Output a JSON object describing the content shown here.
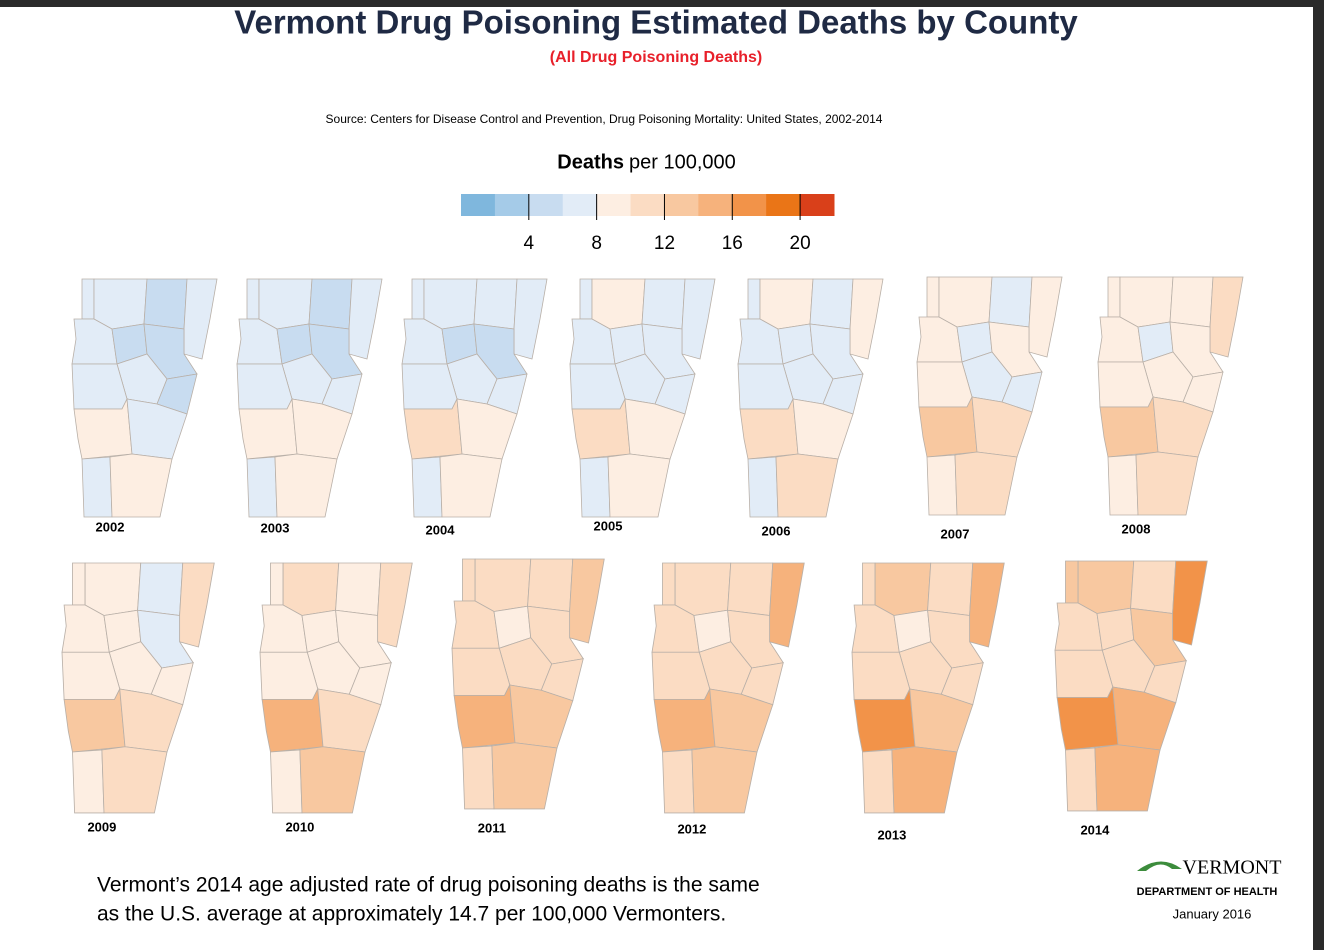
{
  "title": "Vermont Drug Poisoning Estimated Deaths by County",
  "subtitle": "(All Drug Poisoning Deaths)",
  "source": "Source: Centers for Disease Control and Prevention, Drug Poisoning Mortality: United States, 2002-2014",
  "legend": {
    "title_bold": "Deaths",
    "title_rest": "per 100,000",
    "colors": [
      "#7fb7dd",
      "#a5cbe8",
      "#c8dcf0",
      "#e2ecf7",
      "#fdeee2",
      "#fbdcc3",
      "#f8c8a0",
      "#f6b27c",
      "#f29349",
      "#ea7517",
      "#d9401a"
    ],
    "lim": [
      0,
      22
    ],
    "ticks": [
      4,
      8,
      12,
      16,
      20
    ]
  },
  "maps": [
    {
      "year": "2002",
      "values": [
        7,
        7,
        5,
        7,
        7,
        5,
        5,
        7,
        7,
        5,
        9,
        7,
        7,
        9
      ]
    },
    {
      "year": "2003",
      "values": [
        7,
        7,
        5,
        7,
        7,
        5,
        5,
        7,
        7,
        7,
        9,
        9,
        7,
        9
      ]
    },
    {
      "year": "2004",
      "values": [
        7,
        7,
        7,
        7,
        7,
        5,
        5,
        7,
        7,
        7,
        10.5,
        9,
        7,
        9
      ]
    },
    {
      "year": "2005",
      "values": [
        7,
        9,
        7,
        7,
        7,
        7,
        7,
        7,
        7,
        7,
        10.5,
        9,
        7,
        9
      ]
    },
    {
      "year": "2006",
      "values": [
        7,
        9,
        7,
        9,
        7,
        7,
        7,
        7,
        7,
        7,
        10.5,
        9,
        7,
        10.5
      ]
    },
    {
      "year": "2007",
      "values": [
        9,
        9,
        7,
        9,
        9,
        7,
        9,
        7,
        9,
        7,
        12.5,
        10.5,
        9,
        10.5
      ]
    },
    {
      "year": "2008",
      "values": [
        9,
        9,
        9,
        10.5,
        9,
        7,
        9,
        9,
        9,
        9,
        12.5,
        10.5,
        9,
        10.5
      ]
    },
    {
      "year": "2009",
      "values": [
        9,
        9,
        7,
        10.5,
        9,
        9,
        7,
        9,
        9,
        9,
        12.5,
        10.5,
        9,
        10.5
      ]
    },
    {
      "year": "2010",
      "values": [
        9,
        10.5,
        9,
        10.5,
        9,
        9,
        9,
        9,
        9,
        9,
        14.5,
        10.5,
        9,
        12.5
      ]
    },
    {
      "year": "2011",
      "values": [
        10.5,
        10.5,
        10.5,
        12.5,
        10.5,
        9,
        10.5,
        10.5,
        10.5,
        10.5,
        14.5,
        12.5,
        10.5,
        12.5
      ]
    },
    {
      "year": "2012",
      "values": [
        10.5,
        10.5,
        10.5,
        14.5,
        10.5,
        9,
        10.5,
        10.5,
        10.5,
        10.5,
        14.5,
        12.5,
        10.5,
        12.5
      ]
    },
    {
      "year": "2013",
      "values": [
        10.5,
        12.5,
        10.5,
        14.5,
        10.5,
        9,
        10.5,
        10.5,
        10.5,
        10.5,
        17,
        12.5,
        10.5,
        14.5
      ]
    },
    {
      "year": "2014",
      "values": [
        12.5,
        12.5,
        10.5,
        17,
        10.5,
        10.5,
        12.5,
        10.5,
        10.5,
        10.5,
        17,
        14.5,
        10.5,
        14.5
      ]
    }
  ],
  "note": [
    "Vermont’s 2014 age adjusted rate of drug poisoning deaths is the same",
    "as the U.S. average at approximately 14.7 per 100,000 Vermonters."
  ],
  "logo": {
    "name": "VERMONT",
    "department": "DEPARTMENT OF HEALTH",
    "date": "January 2016"
  }
}
